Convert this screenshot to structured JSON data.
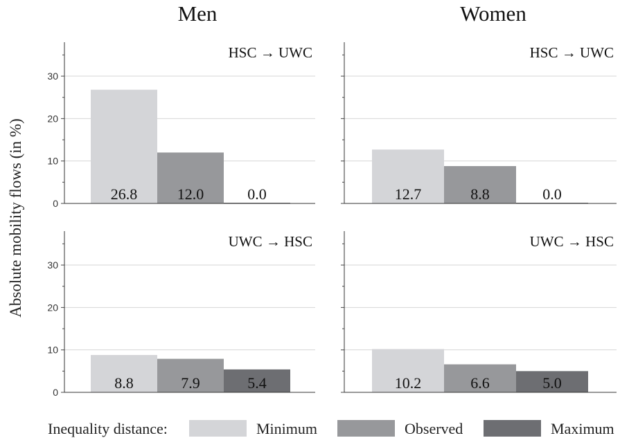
{
  "chart_data": {
    "type": "bar",
    "ylabel": "Absolute mobility flows (in %)",
    "ylim": [
      0,
      38
    ],
    "yticks": [
      0,
      10,
      20,
      30
    ],
    "grid": true,
    "columns": [
      "Men",
      "Women"
    ],
    "rows": [
      {
        "label": "HSC → UWC"
      },
      {
        "label": "UWC → HSC"
      }
    ],
    "categories": [
      "Minimum",
      "Observed",
      "Maximum"
    ],
    "colors": {
      "Minimum": "#d4d5d8",
      "Observed": "#97989b",
      "Maximum": "#6d6e72"
    },
    "panels": [
      {
        "column": "Men",
        "row": "HSC → UWC",
        "values": [
          26.8,
          12.0,
          0.0
        ],
        "labels": [
          "26.8",
          "12.0",
          "0.0"
        ]
      },
      {
        "column": "Women",
        "row": "HSC → UWC",
        "values": [
          12.7,
          8.8,
          0.0
        ],
        "labels": [
          "12.7",
          "8.8",
          "0.0"
        ]
      },
      {
        "column": "Men",
        "row": "UWC → HSC",
        "values": [
          8.8,
          7.9,
          5.4
        ],
        "labels": [
          "8.8",
          "7.9",
          "5.4"
        ]
      },
      {
        "column": "Women",
        "row": "UWC → HSC",
        "values": [
          10.2,
          6.6,
          5.0
        ],
        "labels": [
          "10.2",
          "6.6",
          "5.0"
        ]
      }
    ],
    "legend": {
      "title": "Inequality distance:",
      "position": "bottom",
      "entries": [
        "Minimum",
        "Observed",
        "Maximum"
      ]
    }
  }
}
